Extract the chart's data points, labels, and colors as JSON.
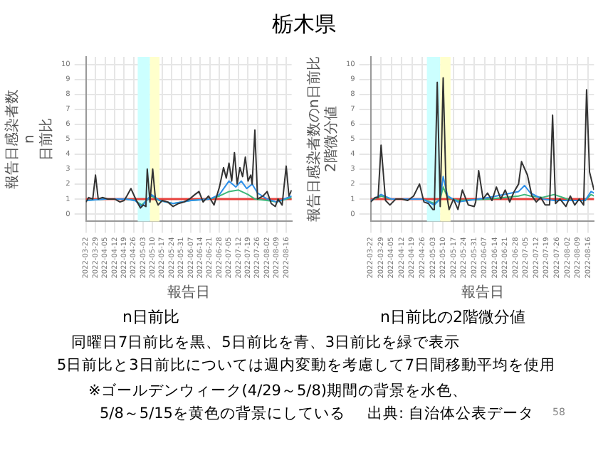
{
  "chart_data": [
    {
      "type": "line",
      "title": "n日前比",
      "xlabel": "報告日",
      "ylabel": "報告日感染者数 n 日前比",
      "annotations": [
        "栃木県"
      ],
      "xlim": [
        "2022-03-22",
        "2022-08-20"
      ],
      "xticks": [
        "2022-03-22",
        "2022-03-29",
        "2022-04-05",
        "2022-04-12",
        "2022-04-19",
        "2022-04-26",
        "2022-05-03",
        "2022-05-10",
        "2022-05-17",
        "2022-05-24",
        "2022-05-31",
        "2022-06-07",
        "2022-06-14",
        "2022-06-21",
        "2022-06-28",
        "2022-07-05",
        "2022-07-12",
        "2022-07-19",
        "2022-07-26",
        "2022-08-02",
        "2022-08-09",
        "2022-08-16"
      ],
      "ylim": [
        -0.5,
        10.5
      ],
      "yticks": [
        0,
        1,
        2,
        3,
        4,
        5,
        6,
        7,
        8,
        9,
        10
      ],
      "grid": true,
      "bands": [
        {
          "axis": "x",
          "from": "2022-04-29",
          "to": "2022-05-08",
          "color": "#ccffff"
        },
        {
          "axis": "x",
          "from": "2022-05-08",
          "to": "2022-05-15",
          "color": "#ffffcc"
        }
      ],
      "ref_lines": [
        {
          "axis": "y",
          "value": 1,
          "color": "#e8413c"
        }
      ],
      "series": [
        {
          "color": "#333333",
          "x": [
            "2022-03-22",
            "2022-03-24",
            "2022-03-27",
            "2022-03-29",
            "2022-03-31",
            "2022-04-03",
            "2022-04-07",
            "2022-04-12",
            "2022-04-16",
            "2022-04-19",
            "2022-04-21",
            "2022-04-24",
            "2022-04-28",
            "2022-05-01",
            "2022-05-03",
            "2022-05-05",
            "2022-05-06",
            "2022-05-08",
            "2022-05-10",
            "2022-05-12",
            "2022-05-14",
            "2022-05-17",
            "2022-05-21",
            "2022-05-25",
            "2022-05-29",
            "2022-06-02",
            "2022-06-06",
            "2022-06-10",
            "2022-06-13",
            "2022-06-16",
            "2022-06-20",
            "2022-06-24",
            "2022-06-28",
            "2022-07-01",
            "2022-07-03",
            "2022-07-05",
            "2022-07-07",
            "2022-07-09",
            "2022-07-11",
            "2022-07-13",
            "2022-07-15",
            "2022-07-17",
            "2022-07-19",
            "2022-07-21",
            "2022-07-22",
            "2022-07-24",
            "2022-07-26",
            "2022-07-30",
            "2022-08-02",
            "2022-08-05",
            "2022-08-08",
            "2022-08-10",
            "2022-08-13",
            "2022-08-16",
            "2022-08-18",
            "2022-08-20"
          ],
          "values": [
            0.8,
            1.1,
            1.0,
            2.6,
            1.0,
            1.1,
            1.0,
            1.0,
            0.8,
            0.9,
            1.2,
            1.7,
            0.9,
            0.4,
            0.6,
            0.5,
            3.0,
            0.8,
            3.0,
            1.0,
            0.6,
            0.9,
            0.8,
            0.5,
            0.7,
            0.8,
            1.0,
            1.3,
            1.5,
            0.8,
            1.2,
            0.6,
            1.8,
            3.1,
            2.4,
            3.4,
            2.2,
            4.1,
            2.0,
            3.1,
            2.5,
            3.8,
            2.2,
            2.6,
            2.0,
            5.6,
            1.0,
            1.2,
            1.5,
            0.7,
            0.5,
            1.0,
            0.6,
            3.2,
            1.2,
            1.6
          ]
        },
        {
          "color": "#2f8fe8",
          "x": [
            "2022-03-22",
            "2022-04-05",
            "2022-04-20",
            "2022-04-27",
            "2022-05-02",
            "2022-05-09",
            "2022-05-15",
            "2022-05-25",
            "2022-06-07",
            "2022-06-21",
            "2022-06-28",
            "2022-07-05",
            "2022-07-10",
            "2022-07-14",
            "2022-07-18",
            "2022-07-22",
            "2022-07-26",
            "2022-08-02",
            "2022-08-09",
            "2022-08-20"
          ],
          "values": [
            0.9,
            1.0,
            1.0,
            0.9,
            0.5,
            1.3,
            0.9,
            0.7,
            0.9,
            1.0,
            1.3,
            2.2,
            1.8,
            2.2,
            1.7,
            2.0,
            1.4,
            1.0,
            0.8,
            1.2
          ]
        },
        {
          "color": "#3db87a",
          "x": [
            "2022-03-22",
            "2022-04-05",
            "2022-04-20",
            "2022-04-27",
            "2022-05-02",
            "2022-05-09",
            "2022-05-15",
            "2022-05-25",
            "2022-06-07",
            "2022-06-21",
            "2022-06-28",
            "2022-07-05",
            "2022-07-12",
            "2022-07-19",
            "2022-07-24",
            "2022-08-02",
            "2022-08-09",
            "2022-08-20"
          ],
          "values": [
            0.9,
            1.0,
            1.0,
            0.9,
            0.6,
            1.2,
            0.9,
            0.7,
            0.9,
            1.0,
            1.2,
            1.5,
            1.6,
            1.3,
            1.0,
            0.9,
            0.8,
            1.1
          ]
        }
      ]
    },
    {
      "type": "line",
      "title": "n日前比の2階微分値",
      "xlabel": "報告日",
      "ylabel": "報告日感染者数のn日前比 2階微分値",
      "annotations": [
        "同曜日7日前比を黒、5日前比を青、3日前比を緑で表示",
        "5日前比と3日前比については週内変動を考慮して7日間移動平均を使用",
        "※ゴールデンウィーク(4/29～5/8)期間の背景を水色、",
        "5/8～5/15を黄色の背景にしている",
        "出典: 自治体公表データ",
        "58"
      ],
      "xlim": [
        "2022-03-22",
        "2022-08-20"
      ],
      "xticks": [
        "2022-03-22",
        "2022-03-29",
        "2022-04-05",
        "2022-04-12",
        "2022-04-19",
        "2022-04-26",
        "2022-05-03",
        "2022-05-10",
        "2022-05-17",
        "2022-05-24",
        "2022-05-31",
        "2022-06-07",
        "2022-06-14",
        "2022-06-21",
        "2022-06-28",
        "2022-07-05",
        "2022-07-12",
        "2022-07-19",
        "2022-07-26",
        "2022-08-02",
        "2022-08-09",
        "2022-08-16"
      ],
      "ylim": [
        -0.5,
        10.5
      ],
      "yticks": [
        0,
        1,
        2,
        3,
        4,
        5,
        6,
        7,
        8,
        9,
        10
      ],
      "grid": true,
      "bands": [
        {
          "axis": "x",
          "from": "2022-04-29",
          "to": "2022-05-08",
          "color": "#ccffff"
        },
        {
          "axis": "x",
          "from": "2022-05-08",
          "to": "2022-05-15",
          "color": "#ffffcc"
        }
      ],
      "ref_lines": [
        {
          "axis": "y",
          "value": 1,
          "color": "#e8413c"
        }
      ],
      "series": [
        {
          "color": "#333333",
          "x": [
            "2022-03-22",
            "2022-03-25",
            "2022-03-27",
            "2022-03-29",
            "2022-04-01",
            "2022-04-04",
            "2022-04-08",
            "2022-04-12",
            "2022-04-16",
            "2022-04-20",
            "2022-04-24",
            "2022-04-27",
            "2022-04-30",
            "2022-05-03",
            "2022-05-04",
            "2022-05-06",
            "2022-05-08",
            "2022-05-10",
            "2022-05-12",
            "2022-05-14",
            "2022-05-17",
            "2022-05-20",
            "2022-05-23",
            "2022-05-27",
            "2022-05-31",
            "2022-06-01",
            "2022-06-03",
            "2022-06-06",
            "2022-06-09",
            "2022-06-12",
            "2022-06-15",
            "2022-06-18",
            "2022-06-21",
            "2022-06-24",
            "2022-06-27",
            "2022-06-30",
            "2022-07-02",
            "2022-07-06",
            "2022-07-09",
            "2022-07-12",
            "2022-07-15",
            "2022-07-18",
            "2022-07-21",
            "2022-07-23",
            "2022-07-25",
            "2022-07-28",
            "2022-08-01",
            "2022-08-04",
            "2022-08-07",
            "2022-08-10",
            "2022-08-13",
            "2022-08-15",
            "2022-08-17",
            "2022-08-20"
          ],
          "values": [
            0.8,
            1.1,
            1.1,
            4.6,
            0.9,
            0.6,
            1.0,
            1.0,
            0.9,
            1.2,
            2.0,
            0.8,
            0.7,
            0.3,
            0.3,
            8.8,
            0.5,
            9.1,
            1.5,
            0.3,
            1.0,
            0.3,
            1.6,
            0.6,
            0.5,
            0.8,
            2.9,
            1.0,
            1.4,
            0.9,
            1.8,
            1.0,
            1.6,
            0.8,
            1.5,
            2.0,
            3.5,
            2.6,
            1.2,
            0.8,
            1.1,
            0.6,
            0.6,
            6.6,
            0.7,
            1.0,
            0.5,
            1.2,
            0.6,
            1.0,
            0.6,
            8.3,
            2.8,
            1.6
          ]
        },
        {
          "color": "#2f8fe8",
          "x": [
            "2022-03-22",
            "2022-03-29",
            "2022-04-05",
            "2022-04-26",
            "2022-05-04",
            "2022-05-08",
            "2022-05-10",
            "2022-05-13",
            "2022-05-20",
            "2022-06-10",
            "2022-06-30",
            "2022-07-04",
            "2022-07-08",
            "2022-07-16",
            "2022-07-24",
            "2022-08-05",
            "2022-08-14",
            "2022-08-18",
            "2022-08-20"
          ],
          "values": [
            0.9,
            1.3,
            1.0,
            1.0,
            0.6,
            1.0,
            2.5,
            1.2,
            0.8,
            1.1,
            1.5,
            1.9,
            1.4,
            1.0,
            0.9,
            0.9,
            0.9,
            1.5,
            1.4
          ]
        },
        {
          "color": "#3db87a",
          "x": [
            "2022-03-22",
            "2022-03-29",
            "2022-04-05",
            "2022-04-26",
            "2022-05-04",
            "2022-05-08",
            "2022-05-10",
            "2022-05-13",
            "2022-05-20",
            "2022-06-10",
            "2022-06-30",
            "2022-07-04",
            "2022-07-08",
            "2022-07-16",
            "2022-07-24",
            "2022-08-05",
            "2022-08-14",
            "2022-08-18",
            "2022-08-20"
          ],
          "values": [
            0.9,
            1.2,
            1.0,
            1.0,
            0.7,
            1.0,
            1.8,
            1.1,
            0.9,
            1.0,
            1.2,
            1.3,
            1.2,
            1.1,
            1.3,
            0.9,
            0.9,
            1.3,
            1.2
          ]
        }
      ]
    }
  ]
}
